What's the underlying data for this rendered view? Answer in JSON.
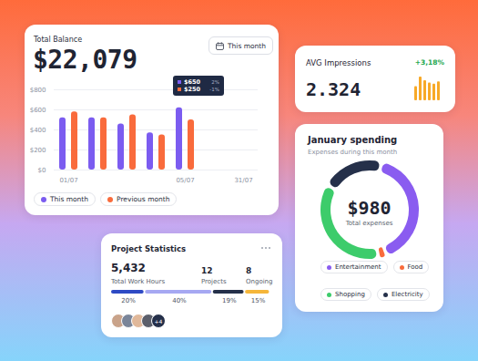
{
  "balance_card": {
    "title": "Total Balance",
    "amount": "$22,079",
    "period": "This month",
    "tooltip": [
      {
        "series": "This month",
        "value": "$650",
        "change": "2%"
      },
      {
        "series": "Previous month",
        "value": "$250",
        "change": "-1%"
      }
    ]
  },
  "impressions_card": {
    "title": "AVG Impressions",
    "value": "2.324",
    "change": "+3,18%"
  },
  "spending_card": {
    "title": "January spending",
    "subtitle": "Expenses during this month",
    "total": "$980",
    "total_label": "Total expenses"
  },
  "project_card": {
    "title": "Project Statistics",
    "stats": [
      {
        "value": "5,432",
        "label": "Total Work Hours"
      },
      {
        "value": "12",
        "label": "Projects"
      },
      {
        "value": "8",
        "label": "Ongoing"
      }
    ],
    "avatars_more": "+4"
  },
  "chart_data": [
    {
      "type": "bar",
      "categories": [
        "01/07",
        null,
        null,
        null,
        "05/07",
        null,
        "31/07"
      ],
      "series": [
        {
          "name": "This month",
          "color": "#7b5cf0",
          "values": [
            520,
            520,
            460,
            370,
            620,
            null,
            null
          ]
        },
        {
          "name": "Previous month",
          "color": "#f96b3c",
          "values": [
            580,
            520,
            550,
            350,
            500,
            null,
            null
          ]
        }
      ],
      "ylim": [
        0,
        800
      ],
      "yticks": [
        {
          "value": 0,
          "label": "$0"
        },
        {
          "value": 200,
          "label": "$200"
        },
        {
          "value": 400,
          "label": "$400"
        },
        {
          "value": 600,
          "label": "$600"
        },
        {
          "value": 800,
          "label": "$800"
        }
      ],
      "grid": true,
      "legend": "bottom"
    },
    {
      "type": "bar",
      "categories": [
        null,
        null,
        null,
        null,
        null,
        null
      ],
      "values": [
        12,
        20,
        17,
        15,
        14,
        16
      ],
      "color": "#f7a928",
      "ylim": [
        0,
        20
      ],
      "yticks": [],
      "tick_labels": false
    },
    {
      "type": "pie",
      "categories": [
        "Entertainment",
        "Food",
        "Shopping",
        "Electricity"
      ],
      "values": [
        400,
        20,
        360,
        200
      ],
      "colors": [
        "#8a5cf0",
        "#f96b3c",
        "#3dcc6b",
        "#25304a"
      ],
      "legend": "bottom"
    },
    {
      "type": "bar",
      "orientation": "horizontal",
      "stacked": true,
      "values": [
        20,
        40,
        19,
        15
      ],
      "value_labels": [
        "20%",
        "40%",
        "19%",
        "15%"
      ],
      "colors": [
        "#2e4ac4",
        "#a6a8f2",
        "#25304a",
        "#f5b63a"
      ],
      "xlim": [
        0,
        94
      ],
      "xticks": [],
      "data_labels": true,
      "tick_labels": false
    }
  ]
}
